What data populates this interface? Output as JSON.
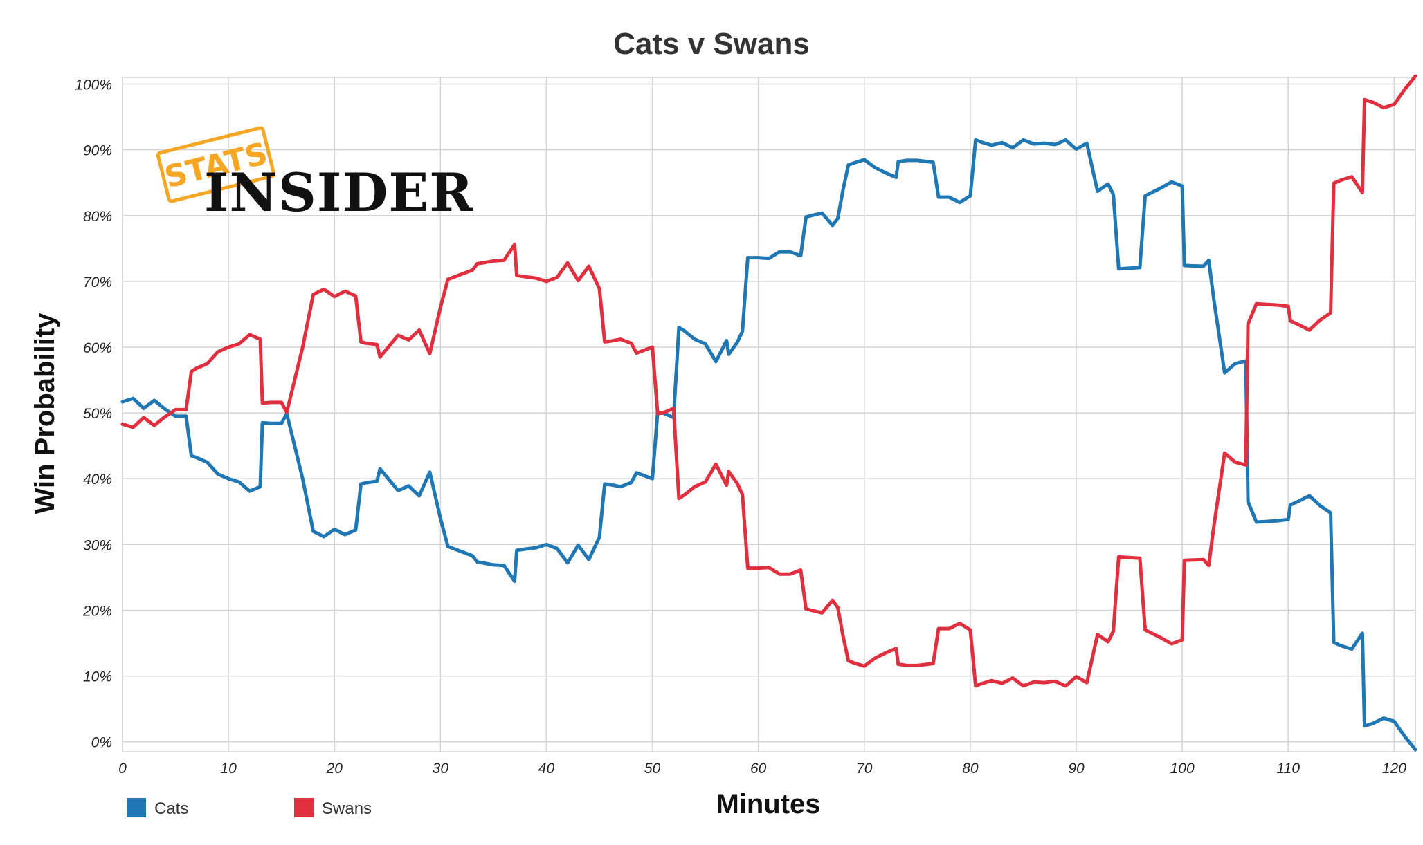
{
  "chart_data": {
    "type": "line",
    "title": "Cats v Swans",
    "xlabel": "Minutes",
    "ylabel": "Win Probability",
    "xlim": [
      0,
      122
    ],
    "ylim": [
      -1.5,
      101
    ],
    "x_ticks": [
      0,
      10,
      20,
      30,
      40,
      50,
      60,
      70,
      80,
      90,
      100,
      110,
      120
    ],
    "y_ticks": [
      0,
      10,
      20,
      30,
      40,
      50,
      60,
      70,
      80,
      90,
      100
    ],
    "y_tick_format": "{v}%",
    "grid": true,
    "legend_position": "bottom-left",
    "series": [
      {
        "name": "Cats",
        "color": "#1f77b4",
        "points": [
          [
            0,
            51.7
          ],
          [
            1,
            52.2
          ],
          [
            2,
            50.7
          ],
          [
            3,
            51.9
          ],
          [
            4,
            50.6
          ],
          [
            5,
            49.5
          ],
          [
            6,
            49.5
          ],
          [
            6.5,
            43.5
          ],
          [
            7,
            43.2
          ],
          [
            8,
            42.5
          ],
          [
            9,
            40.7
          ],
          [
            10,
            40.0
          ],
          [
            11,
            39.5
          ],
          [
            12,
            38.1
          ],
          [
            13,
            38.8
          ],
          [
            13.2,
            48.5
          ],
          [
            14,
            48.4
          ],
          [
            15,
            48.4
          ],
          [
            15.5,
            49.9
          ],
          [
            17,
            40.0
          ],
          [
            18,
            32.0
          ],
          [
            19,
            31.2
          ],
          [
            20,
            32.3
          ],
          [
            21,
            31.5
          ],
          [
            22,
            32.2
          ],
          [
            22.5,
            39.2
          ],
          [
            23,
            39.4
          ],
          [
            24,
            39.6
          ],
          [
            24.3,
            41.5
          ],
          [
            26,
            38.2
          ],
          [
            27,
            38.9
          ],
          [
            28,
            37.4
          ],
          [
            29,
            41.0
          ],
          [
            30,
            34.0
          ],
          [
            30.7,
            29.7
          ],
          [
            32,
            28.9
          ],
          [
            33,
            28.3
          ],
          [
            33.5,
            27.3
          ],
          [
            34,
            27.2
          ],
          [
            35,
            26.9
          ],
          [
            36,
            26.8
          ],
          [
            37,
            24.4
          ],
          [
            37.2,
            29.1
          ],
          [
            38,
            29.3
          ],
          [
            39,
            29.5
          ],
          [
            40,
            30.0
          ],
          [
            41,
            29.4
          ],
          [
            42,
            27.2
          ],
          [
            43,
            29.9
          ],
          [
            44,
            27.7
          ],
          [
            45,
            31.1
          ],
          [
            45.5,
            39.2
          ],
          [
            46,
            39.1
          ],
          [
            47,
            38.8
          ],
          [
            48,
            39.4
          ],
          [
            48.5,
            40.9
          ],
          [
            49,
            40.6
          ],
          [
            50,
            40.0
          ],
          [
            50.5,
            50.1
          ],
          [
            51,
            50.0
          ],
          [
            52,
            49.3
          ],
          [
            52.5,
            63.0
          ],
          [
            53,
            62.5
          ],
          [
            54,
            61.2
          ],
          [
            55,
            60.5
          ],
          [
            56,
            57.8
          ],
          [
            57,
            61.0
          ],
          [
            57.2,
            58.9
          ],
          [
            58,
            60.7
          ],
          [
            58.5,
            62.4
          ],
          [
            59,
            73.6
          ],
          [
            60,
            73.6
          ],
          [
            61,
            73.5
          ],
          [
            62,
            74.5
          ],
          [
            63,
            74.5
          ],
          [
            64,
            73.9
          ],
          [
            64.5,
            79.8
          ],
          [
            65,
            80.0
          ],
          [
            66,
            80.4
          ],
          [
            67,
            78.5
          ],
          [
            67.5,
            79.6
          ],
          [
            68,
            84.0
          ],
          [
            68.5,
            87.7
          ],
          [
            69,
            88.0
          ],
          [
            70,
            88.5
          ],
          [
            71,
            87.3
          ],
          [
            72,
            86.5
          ],
          [
            73,
            85.8
          ],
          [
            73.2,
            88.2
          ],
          [
            74,
            88.4
          ],
          [
            75,
            88.4
          ],
          [
            76,
            88.2
          ],
          [
            76.5,
            88.1
          ],
          [
            77,
            82.8
          ],
          [
            78,
            82.8
          ],
          [
            79,
            82.0
          ],
          [
            80,
            83.0
          ],
          [
            80.5,
            91.5
          ],
          [
            81,
            91.2
          ],
          [
            82,
            90.7
          ],
          [
            83,
            91.1
          ],
          [
            84,
            90.3
          ],
          [
            85,
            91.5
          ],
          [
            86,
            90.9
          ],
          [
            87,
            91.0
          ],
          [
            88,
            90.8
          ],
          [
            89,
            91.5
          ],
          [
            90,
            90.1
          ],
          [
            91,
            91.0
          ],
          [
            92,
            83.7
          ],
          [
            93,
            84.8
          ],
          [
            93.5,
            83.2
          ],
          [
            94,
            71.9
          ],
          [
            96,
            72.1
          ],
          [
            96.5,
            83.0
          ],
          [
            97,
            83.4
          ],
          [
            98,
            84.2
          ],
          [
            99,
            85.1
          ],
          [
            100,
            84.5
          ],
          [
            100.2,
            72.4
          ],
          [
            102,
            72.3
          ],
          [
            102.5,
            73.2
          ],
          [
            103,
            67.0
          ],
          [
            104,
            56.1
          ],
          [
            105,
            57.5
          ],
          [
            106,
            57.9
          ],
          [
            106.2,
            36.5
          ],
          [
            107,
            33.4
          ],
          [
            108,
            33.5
          ],
          [
            109,
            33.6
          ],
          [
            110,
            33.8
          ],
          [
            110.2,
            36.0
          ],
          [
            111,
            36.6
          ],
          [
            112,
            37.4
          ],
          [
            113,
            35.9
          ],
          [
            114,
            34.8
          ],
          [
            114.3,
            15.1
          ],
          [
            115,
            14.6
          ],
          [
            116,
            14.1
          ],
          [
            117,
            16.5
          ],
          [
            117.2,
            2.4
          ],
          [
            118,
            2.8
          ],
          [
            119,
            3.6
          ],
          [
            120,
            3.1
          ],
          [
            121,
            0.8
          ],
          [
            122,
            -1.2
          ]
        ]
      },
      {
        "name": "Swans",
        "color": "#e03040",
        "points": [
          [
            0,
            48.3
          ],
          [
            1,
            47.8
          ],
          [
            2,
            49.3
          ],
          [
            3,
            48.1
          ],
          [
            4,
            49.4
          ],
          [
            5,
            50.5
          ],
          [
            6,
            50.5
          ],
          [
            6.5,
            56.3
          ],
          [
            7,
            56.8
          ],
          [
            8,
            57.5
          ],
          [
            9,
            59.3
          ],
          [
            10,
            60.0
          ],
          [
            11,
            60.5
          ],
          [
            12,
            61.9
          ],
          [
            13,
            61.2
          ],
          [
            13.2,
            51.5
          ],
          [
            14,
            51.6
          ],
          [
            15,
            51.6
          ],
          [
            15.5,
            50.1
          ],
          [
            17,
            60.0
          ],
          [
            18,
            68.0
          ],
          [
            19,
            68.8
          ],
          [
            20,
            67.7
          ],
          [
            21,
            68.5
          ],
          [
            22,
            67.8
          ],
          [
            22.5,
            60.8
          ],
          [
            23,
            60.6
          ],
          [
            24,
            60.4
          ],
          [
            24.3,
            58.5
          ],
          [
            26,
            61.8
          ],
          [
            27,
            61.1
          ],
          [
            28,
            62.6
          ],
          [
            29,
            59.0
          ],
          [
            30,
            66.0
          ],
          [
            30.7,
            70.3
          ],
          [
            32,
            71.1
          ],
          [
            33,
            71.7
          ],
          [
            33.5,
            72.7
          ],
          [
            34,
            72.8
          ],
          [
            35,
            73.1
          ],
          [
            36,
            73.2
          ],
          [
            37,
            75.6
          ],
          [
            37.2,
            70.9
          ],
          [
            38,
            70.7
          ],
          [
            39,
            70.5
          ],
          [
            40,
            70.0
          ],
          [
            41,
            70.6
          ],
          [
            42,
            72.8
          ],
          [
            43,
            70.1
          ],
          [
            44,
            72.3
          ],
          [
            45,
            68.9
          ],
          [
            45.5,
            60.8
          ],
          [
            46,
            60.9
          ],
          [
            47,
            61.2
          ],
          [
            48,
            60.6
          ],
          [
            48.5,
            59.1
          ],
          [
            49,
            59.4
          ],
          [
            50,
            60.0
          ],
          [
            50.5,
            49.9
          ],
          [
            51,
            50.0
          ],
          [
            52,
            50.7
          ],
          [
            52.5,
            37.0
          ],
          [
            53,
            37.5
          ],
          [
            54,
            38.8
          ],
          [
            55,
            39.5
          ],
          [
            56,
            42.2
          ],
          [
            57,
            39.0
          ],
          [
            57.2,
            41.1
          ],
          [
            58,
            39.3
          ],
          [
            58.5,
            37.6
          ],
          [
            59,
            26.4
          ],
          [
            60,
            26.4
          ],
          [
            61,
            26.5
          ],
          [
            62,
            25.5
          ],
          [
            63,
            25.5
          ],
          [
            64,
            26.1
          ],
          [
            64.5,
            20.2
          ],
          [
            65,
            20.0
          ],
          [
            66,
            19.6
          ],
          [
            67,
            21.5
          ],
          [
            67.5,
            20.4
          ],
          [
            68,
            16.0
          ],
          [
            68.5,
            12.3
          ],
          [
            69,
            12.0
          ],
          [
            70,
            11.5
          ],
          [
            71,
            12.7
          ],
          [
            72,
            13.5
          ],
          [
            73,
            14.2
          ],
          [
            73.2,
            11.8
          ],
          [
            74,
            11.6
          ],
          [
            75,
            11.6
          ],
          [
            76,
            11.8
          ],
          [
            76.5,
            11.9
          ],
          [
            77,
            17.2
          ],
          [
            78,
            17.2
          ],
          [
            79,
            18.0
          ],
          [
            80,
            17.0
          ],
          [
            80.5,
            8.5
          ],
          [
            81,
            8.8
          ],
          [
            82,
            9.3
          ],
          [
            83,
            8.9
          ],
          [
            84,
            9.7
          ],
          [
            85,
            8.5
          ],
          [
            86,
            9.1
          ],
          [
            87,
            9.0
          ],
          [
            88,
            9.2
          ],
          [
            89,
            8.5
          ],
          [
            90,
            9.9
          ],
          [
            91,
            9.0
          ],
          [
            92,
            16.3
          ],
          [
            93,
            15.2
          ],
          [
            93.5,
            16.8
          ],
          [
            94,
            28.1
          ],
          [
            96,
            27.9
          ],
          [
            96.5,
            17.0
          ],
          [
            97,
            16.6
          ],
          [
            98,
            15.8
          ],
          [
            99,
            14.9
          ],
          [
            100,
            15.5
          ],
          [
            100.2,
            27.6
          ],
          [
            102,
            27.7
          ],
          [
            102.5,
            26.8
          ],
          [
            103,
            33.0
          ],
          [
            104,
            43.9
          ],
          [
            105,
            42.5
          ],
          [
            106,
            42.1
          ],
          [
            106.2,
            63.5
          ],
          [
            107,
            66.6
          ],
          [
            108,
            66.5
          ],
          [
            109,
            66.4
          ],
          [
            110,
            66.2
          ],
          [
            110.2,
            64.0
          ],
          [
            111,
            63.4
          ],
          [
            112,
            62.6
          ],
          [
            113,
            64.1
          ],
          [
            114,
            65.2
          ],
          [
            114.3,
            84.9
          ],
          [
            115,
            85.4
          ],
          [
            116,
            85.9
          ],
          [
            117,
            83.5
          ],
          [
            117.2,
            97.6
          ],
          [
            118,
            97.2
          ],
          [
            119,
            96.4
          ],
          [
            120,
            96.9
          ],
          [
            121,
            99.2
          ],
          [
            122,
            101.2
          ]
        ]
      }
    ]
  },
  "logo": {
    "top_word": "STATS",
    "main_word": "INSIDER"
  }
}
